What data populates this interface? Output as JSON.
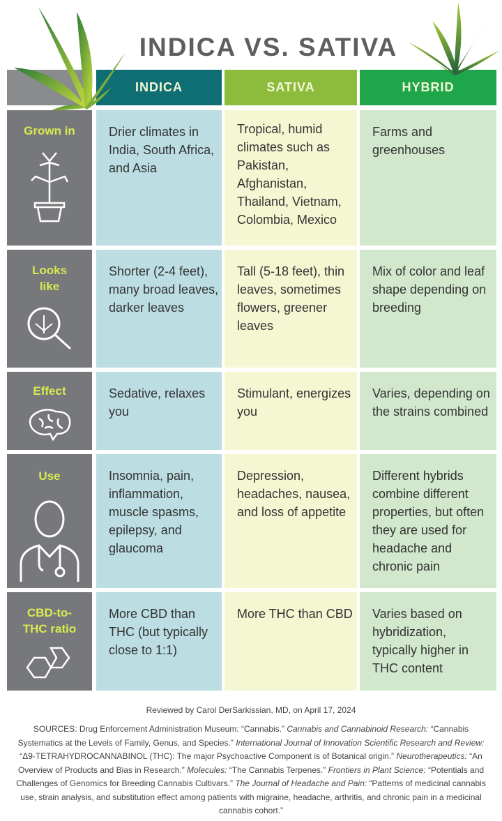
{
  "title": "INDICA VS. SATIVA",
  "columns": {
    "indica": "INDICA",
    "sativa": "SATIVA",
    "hybrid": "HYBRID"
  },
  "colors": {
    "indica": "#0f6e73",
    "sativa": "#8dbb3c",
    "hybrid": "#1fa54a",
    "label_bg": "#77787b",
    "label_text": "#d9ea4f"
  },
  "rows": [
    {
      "label": "Grown in",
      "icon": "potted-plant-icon",
      "indica": "Drier climates in India, South Africa, and Asia",
      "sativa": "Tropical, humid climates such as Pakistan, Afghanistan, Thailand, Vietnam, Colombia, Mexico",
      "hybrid": "Farms and greenhouses"
    },
    {
      "label": "Looks like",
      "icon": "magnifier-leaf-icon",
      "indica": "Shorter (2-4 feet), many broad leaves, darker leaves",
      "sativa": "Tall (5-18 feet), thin leaves, sometimes flowers, greener leaves",
      "hybrid": "Mix of color and leaf shape depending on breeding"
    },
    {
      "label": "Effect",
      "icon": "brain-icon",
      "indica": "Sedative, relaxes you",
      "sativa": "Stimulant, energizes you",
      "hybrid": "Varies, depending on the strains combined"
    },
    {
      "label": "Use",
      "icon": "doctor-icon",
      "indica": "Insomnia, pain, inflammation, muscle spasms, epilepsy, and glaucoma",
      "sativa": "Depression, headaches, nausea, and loss of appetite",
      "hybrid": "Different hybrids combine different properties, but often they are used for headache and chronic pain"
    },
    {
      "label": "CBD-to-THC ratio",
      "icon": "hexagon-molecule-icon",
      "indica": "More CBD than THC (but typically close to 1:1)",
      "sativa": "More THC than CBD",
      "hybrid": "Varies based on hybridization, typically higher in THC content"
    }
  ],
  "reviewed": "Reviewed by Carol DerSarkissian, MD, on April 17, 2024",
  "sources": [
    {
      "t": "SOURCES:  Drug Enforcement Administration Museum: “Cannabis.”  ",
      "i": false
    },
    {
      "t": "Cannabis and Cannabinoid Research:",
      "i": true
    },
    {
      "t": " “Cannabis Systematics at the Levels of Family, Genus, and Species.”  ",
      "i": false
    },
    {
      "t": "International Journal of Innovation Scientific Research and Review:",
      "i": true
    },
    {
      "t": " “Δ9-TETRAHYDROCANNABINOL (THC): The major Psychoactive Component is of Botanical origin.”  ",
      "i": false
    },
    {
      "t": "Neurotherapeutics:",
      "i": true
    },
    {
      "t": " “An Overview of Products and Bias in Research.”  ",
      "i": false
    },
    {
      "t": "Molecules:",
      "i": true
    },
    {
      "t": " “The Cannabis Terpenes.”  ",
      "i": false
    },
    {
      "t": "Frontiers in Plant Science:",
      "i": true
    },
    {
      "t": " “Potentials and Challenges of Genomics for Breeding Cannabis Cultivars.”  ",
      "i": false
    },
    {
      "t": "The Journal of Headache and Pain:",
      "i": true
    },
    {
      "t": " “Patterns of medicinal cannabis use, strain analysis, and substitution effect among patients with migraine, headache, arthritis, and chronic pain in a medicinal cannabis cohort.”",
      "i": false
    }
  ]
}
